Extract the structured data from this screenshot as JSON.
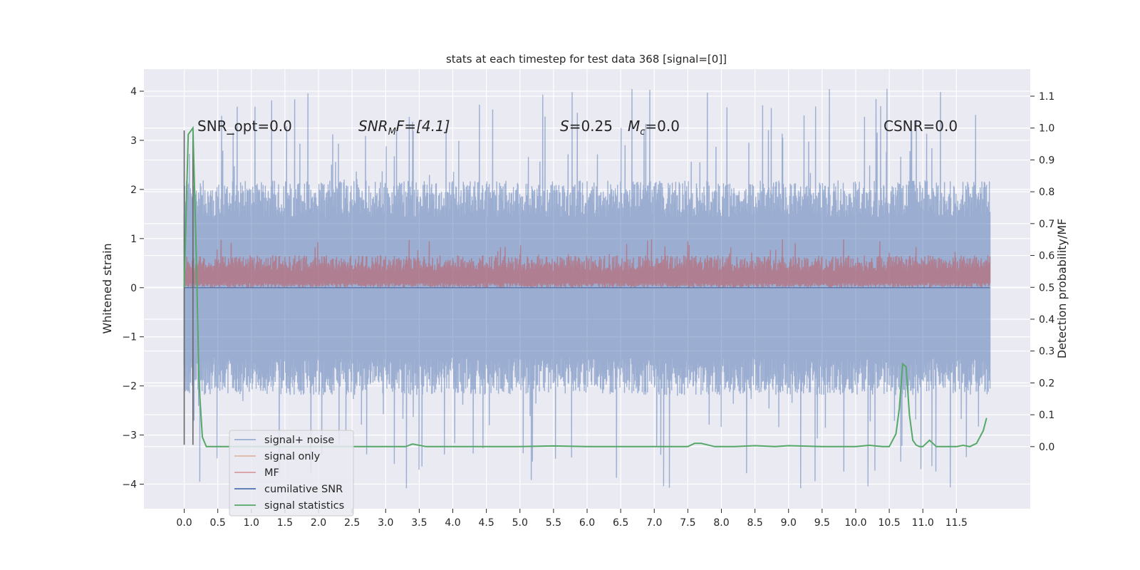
{
  "chart_data": {
    "type": "line",
    "title": "stats at each timestep for test data 368 [signal=[0]]",
    "xlabel": "",
    "ylabel": "Whitened strain",
    "ylabel_right": "Detection probability/MF",
    "xlim": [
      -0.6,
      12.6
    ],
    "ylim": [
      -4.5,
      4.45
    ],
    "ylim_right": [
      -0.195,
      1.185
    ],
    "x_ticks": [
      "0.0",
      "0.5",
      "1.0",
      "1.5",
      "2.0",
      "2.5",
      "3.0",
      "3.5",
      "4.0",
      "4.5",
      "5.0",
      "5.5",
      "6.0",
      "6.5",
      "7.0",
      "7.5",
      "8.0",
      "8.5",
      "9.0",
      "9.5",
      "10.0",
      "10.5",
      "11.0",
      "11.5"
    ],
    "y_ticks": [
      "4",
      "3",
      "2",
      "1",
      "0",
      "−1",
      "−2",
      "−3",
      "−4"
    ],
    "y_ticks_right": [
      "1.1",
      "1.0",
      "0.9",
      "0.8",
      "0.7",
      "0.6",
      "0.5",
      "0.4",
      "0.3",
      "0.2",
      "0.1",
      "0.0"
    ],
    "grid": true,
    "legend_position": "lower-left",
    "annotations": {
      "snr_opt": "SNR_opt=0.0",
      "snr_mf_main": "SNR",
      "snr_mf_sub": "M",
      "snr_mf_rest": "F=[4.1]",
      "s_main": "S",
      "s_rest": "=0.25",
      "mc_main": "M",
      "mc_sub": "c",
      "mc_rest": "=0.0",
      "csnr": "CSNR=0.0"
    },
    "series": [
      {
        "name": "signal+ noise",
        "color": "#4c72b0",
        "envelope_upper": 1.9,
        "envelope_lower": -1.9,
        "min_value": -4.1,
        "max_value": 4.05,
        "x_range": [
          0.0,
          12.0
        ]
      },
      {
        "name": "signal only",
        "color": "#dd8452",
        "value": 0.0
      },
      {
        "name": "MF",
        "color": "#c44e52",
        "envelope_upper": 0.55,
        "envelope_lower": 0.0,
        "max_value": 1.0,
        "x_range": [
          0.0,
          12.0
        ]
      },
      {
        "name": "cumilative SNR",
        "color": "#4c72b0",
        "value": 0.0
      },
      {
        "name": "signal statistics",
        "color": "#55a868",
        "axis": "right",
        "x": [
          0.0,
          0.06,
          0.13,
          0.18,
          0.22,
          0.27,
          0.33,
          0.5,
          1.0,
          2.0,
          3.0,
          3.3,
          3.4,
          3.6,
          4.0,
          5.0,
          5.5,
          6.0,
          6.5,
          7.0,
          7.5,
          7.6,
          7.7,
          7.9,
          8.2,
          8.5,
          8.8,
          9.0,
          9.5,
          10.0,
          10.2,
          10.4,
          10.5,
          10.6,
          10.65,
          10.7,
          10.75,
          10.8,
          10.85,
          10.9,
          10.95,
          11.0,
          11.1,
          11.2,
          11.3,
          11.5,
          11.6,
          11.7,
          11.8,
          11.9,
          11.95
        ],
        "y": [
          0.5,
          0.98,
          1.0,
          0.6,
          0.2,
          0.03,
          0.0,
          0.0,
          0.0,
          0.0,
          0.0,
          0.0,
          0.008,
          0.0,
          0.0,
          0.0,
          0.002,
          0.0,
          0.0,
          0.0,
          0.0,
          0.01,
          0.01,
          0.0,
          0.0,
          0.003,
          0.0,
          0.003,
          0.0,
          0.0,
          0.004,
          0.0,
          0.0,
          0.04,
          0.12,
          0.26,
          0.25,
          0.1,
          0.02,
          0.005,
          0.0,
          0.0,
          0.02,
          0.0,
          0.0,
          0.0,
          0.004,
          0.0,
          0.01,
          0.05,
          0.09
        ]
      }
    ]
  }
}
